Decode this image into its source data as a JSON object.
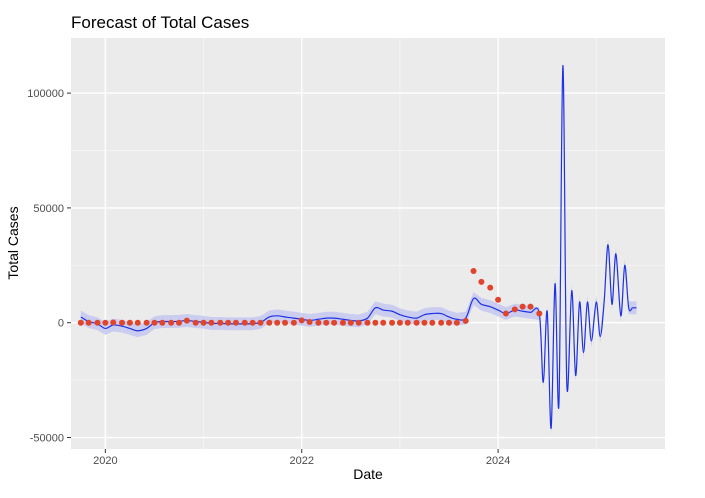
{
  "chart_data": {
    "type": "line",
    "title": "Forecast of Total Cases",
    "xlabel": "Date",
    "ylabel": "Total Cases",
    "xlim": [
      2019.65,
      2025.7
    ],
    "ylim": [
      -55000,
      124000
    ],
    "x_ticks": [
      2020,
      2022,
      2024
    ],
    "x_minor_ticks": [
      2021,
      2023,
      2025
    ],
    "y_ticks": [
      -50000,
      0,
      50000,
      100000
    ],
    "y_minor_ticks": [
      -25000,
      25000,
      75000
    ],
    "x_tick_labels": [
      "2020",
      "2022",
      "2024"
    ],
    "y_tick_labels": [
      "-50000",
      "0",
      "50000",
      "100000"
    ],
    "grid": true,
    "panel_background": "#ebebeb",
    "colors": {
      "observed": "#e0442b",
      "forecast_line": "#1f32e6",
      "interval_band": "#c4c8f0"
    },
    "observed_points": {
      "x": [
        2019.75,
        2019.83,
        2019.92,
        2020.0,
        2020.08,
        2020.17,
        2020.25,
        2020.33,
        2020.42,
        2020.5,
        2020.58,
        2020.67,
        2020.75,
        2020.83,
        2020.92,
        2021.0,
        2021.08,
        2021.17,
        2021.25,
        2021.33,
        2021.42,
        2021.5,
        2021.58,
        2021.67,
        2021.75,
        2021.83,
        2021.92,
        2022.0,
        2022.08,
        2022.17,
        2022.25,
        2022.33,
        2022.42,
        2022.5,
        2022.58,
        2022.67,
        2022.75,
        2022.83,
        2022.92,
        2023.0,
        2023.08,
        2023.17,
        2023.25,
        2023.33,
        2023.42,
        2023.5,
        2023.58,
        2023.67,
        2023.75,
        2023.83,
        2023.92,
        2024.0,
        2024.08,
        2024.17,
        2024.25,
        2024.33,
        2024.42
      ],
      "y": [
        0,
        0,
        0,
        0,
        100,
        0,
        0,
        0,
        0,
        0,
        0,
        0,
        0,
        900,
        0,
        0,
        0,
        0,
        0,
        0,
        0,
        0,
        0,
        0,
        0,
        0,
        0,
        1000,
        300,
        0,
        0,
        0,
        0,
        0,
        0,
        0,
        0,
        0,
        0,
        0,
        0,
        0,
        0,
        0,
        0,
        0,
        0,
        800,
        22500,
        17800,
        15300,
        10000,
        4000,
        5800,
        7000,
        7000,
        4000
      ]
    },
    "forecast_series": {
      "x": [
        2019.75,
        2019.83,
        2019.92,
        2020.0,
        2020.08,
        2020.17,
        2020.25,
        2020.33,
        2020.42,
        2020.5,
        2020.58,
        2020.67,
        2020.75,
        2020.83,
        2020.92,
        2021.0,
        2021.08,
        2021.17,
        2021.25,
        2021.33,
        2021.42,
        2021.5,
        2021.58,
        2021.67,
        2021.75,
        2021.83,
        2021.92,
        2022.0,
        2022.08,
        2022.17,
        2022.25,
        2022.33,
        2022.42,
        2022.5,
        2022.58,
        2022.67,
        2022.75,
        2022.83,
        2022.92,
        2023.0,
        2023.08,
        2023.17,
        2023.25,
        2023.33,
        2023.42,
        2023.5,
        2023.58,
        2023.67,
        2023.75,
        2023.83,
        2023.92,
        2024.0,
        2024.08,
        2024.17,
        2024.25,
        2024.33,
        2024.42,
        2024.46,
        2024.5,
        2024.54,
        2024.58,
        2024.62,
        2024.66,
        2024.7,
        2024.75,
        2024.79,
        2024.83,
        2024.87,
        2024.91,
        2024.95,
        2025.0,
        2025.04,
        2025.08,
        2025.12,
        2025.16,
        2025.2,
        2025.25,
        2025.29,
        2025.33,
        2025.37,
        2025.41
      ],
      "y": [
        2500,
        500,
        -500,
        -2500,
        -1000,
        -1500,
        -2500,
        -3500,
        -2500,
        0,
        500,
        500,
        600,
        1000,
        500,
        200,
        -300,
        -300,
        -500,
        -500,
        -500,
        -400,
        100,
        2500,
        3000,
        2500,
        2000,
        1500,
        1000,
        1500,
        2000,
        2000,
        1500,
        1000,
        800,
        2000,
        6500,
        5500,
        5000,
        3500,
        2500,
        2000,
        3500,
        4000,
        4000,
        2500,
        1500,
        2000,
        10500,
        8000,
        7000,
        5500,
        4000,
        5500,
        5000,
        4500,
        4000,
        -26000,
        5000,
        -46000,
        17000,
        -35000,
        112000,
        -27000,
        14000,
        -23000,
        9000,
        -13000,
        9000,
        -8000,
        9000,
        -6000,
        9000,
        34000,
        8000,
        30000,
        3000,
        25000,
        6500,
        6500,
        6500
      ],
      "interval_half_width": 2800
    }
  }
}
